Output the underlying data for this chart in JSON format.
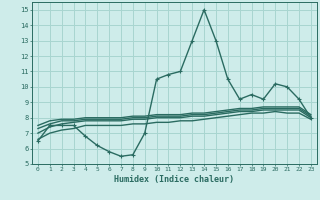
{
  "title": "",
  "xlabel": "Humidex (Indice chaleur)",
  "xlim": [
    -0.5,
    23.5
  ],
  "ylim": [
    5,
    15.5
  ],
  "xticks": [
    0,
    1,
    2,
    3,
    4,
    5,
    6,
    7,
    8,
    9,
    10,
    11,
    12,
    13,
    14,
    15,
    16,
    17,
    18,
    19,
    20,
    21,
    22,
    23
  ],
  "yticks": [
    5,
    6,
    7,
    8,
    9,
    10,
    11,
    12,
    13,
    14,
    15
  ],
  "background_color": "#ceecea",
  "grid_color": "#a8d5d0",
  "line_color": "#2a6b61",
  "line_width": 1.0,
  "marker": "+",
  "marker_size": 3.5,
  "main_line": [
    6.5,
    7.5,
    7.5,
    7.5,
    6.8,
    6.2,
    5.8,
    5.5,
    5.6,
    7.0,
    10.5,
    10.8,
    11.0,
    13.0,
    15.0,
    13.0,
    10.5,
    9.2,
    9.5,
    9.2,
    10.2,
    10.0,
    9.2,
    8.0
  ],
  "trend_lines": [
    [
      7.5,
      7.8,
      7.9,
      7.9,
      8.0,
      8.0,
      8.0,
      8.0,
      8.1,
      8.1,
      8.2,
      8.2,
      8.2,
      8.3,
      8.3,
      8.4,
      8.5,
      8.6,
      8.6,
      8.7,
      8.7,
      8.7,
      8.7,
      8.2
    ],
    [
      7.3,
      7.6,
      7.8,
      7.8,
      7.9,
      7.9,
      7.9,
      7.9,
      8.0,
      8.0,
      8.1,
      8.1,
      8.1,
      8.2,
      8.2,
      8.3,
      8.4,
      8.5,
      8.5,
      8.6,
      8.6,
      8.6,
      8.6,
      8.1
    ],
    [
      7.0,
      7.4,
      7.6,
      7.7,
      7.8,
      7.8,
      7.8,
      7.8,
      7.9,
      7.9,
      8.0,
      8.0,
      8.0,
      8.1,
      8.1,
      8.2,
      8.3,
      8.4,
      8.4,
      8.5,
      8.5,
      8.5,
      8.5,
      8.0
    ],
    [
      6.6,
      7.0,
      7.2,
      7.3,
      7.5,
      7.5,
      7.5,
      7.5,
      7.6,
      7.6,
      7.7,
      7.7,
      7.8,
      7.8,
      7.9,
      8.0,
      8.1,
      8.2,
      8.3,
      8.3,
      8.4,
      8.3,
      8.3,
      7.9
    ]
  ]
}
